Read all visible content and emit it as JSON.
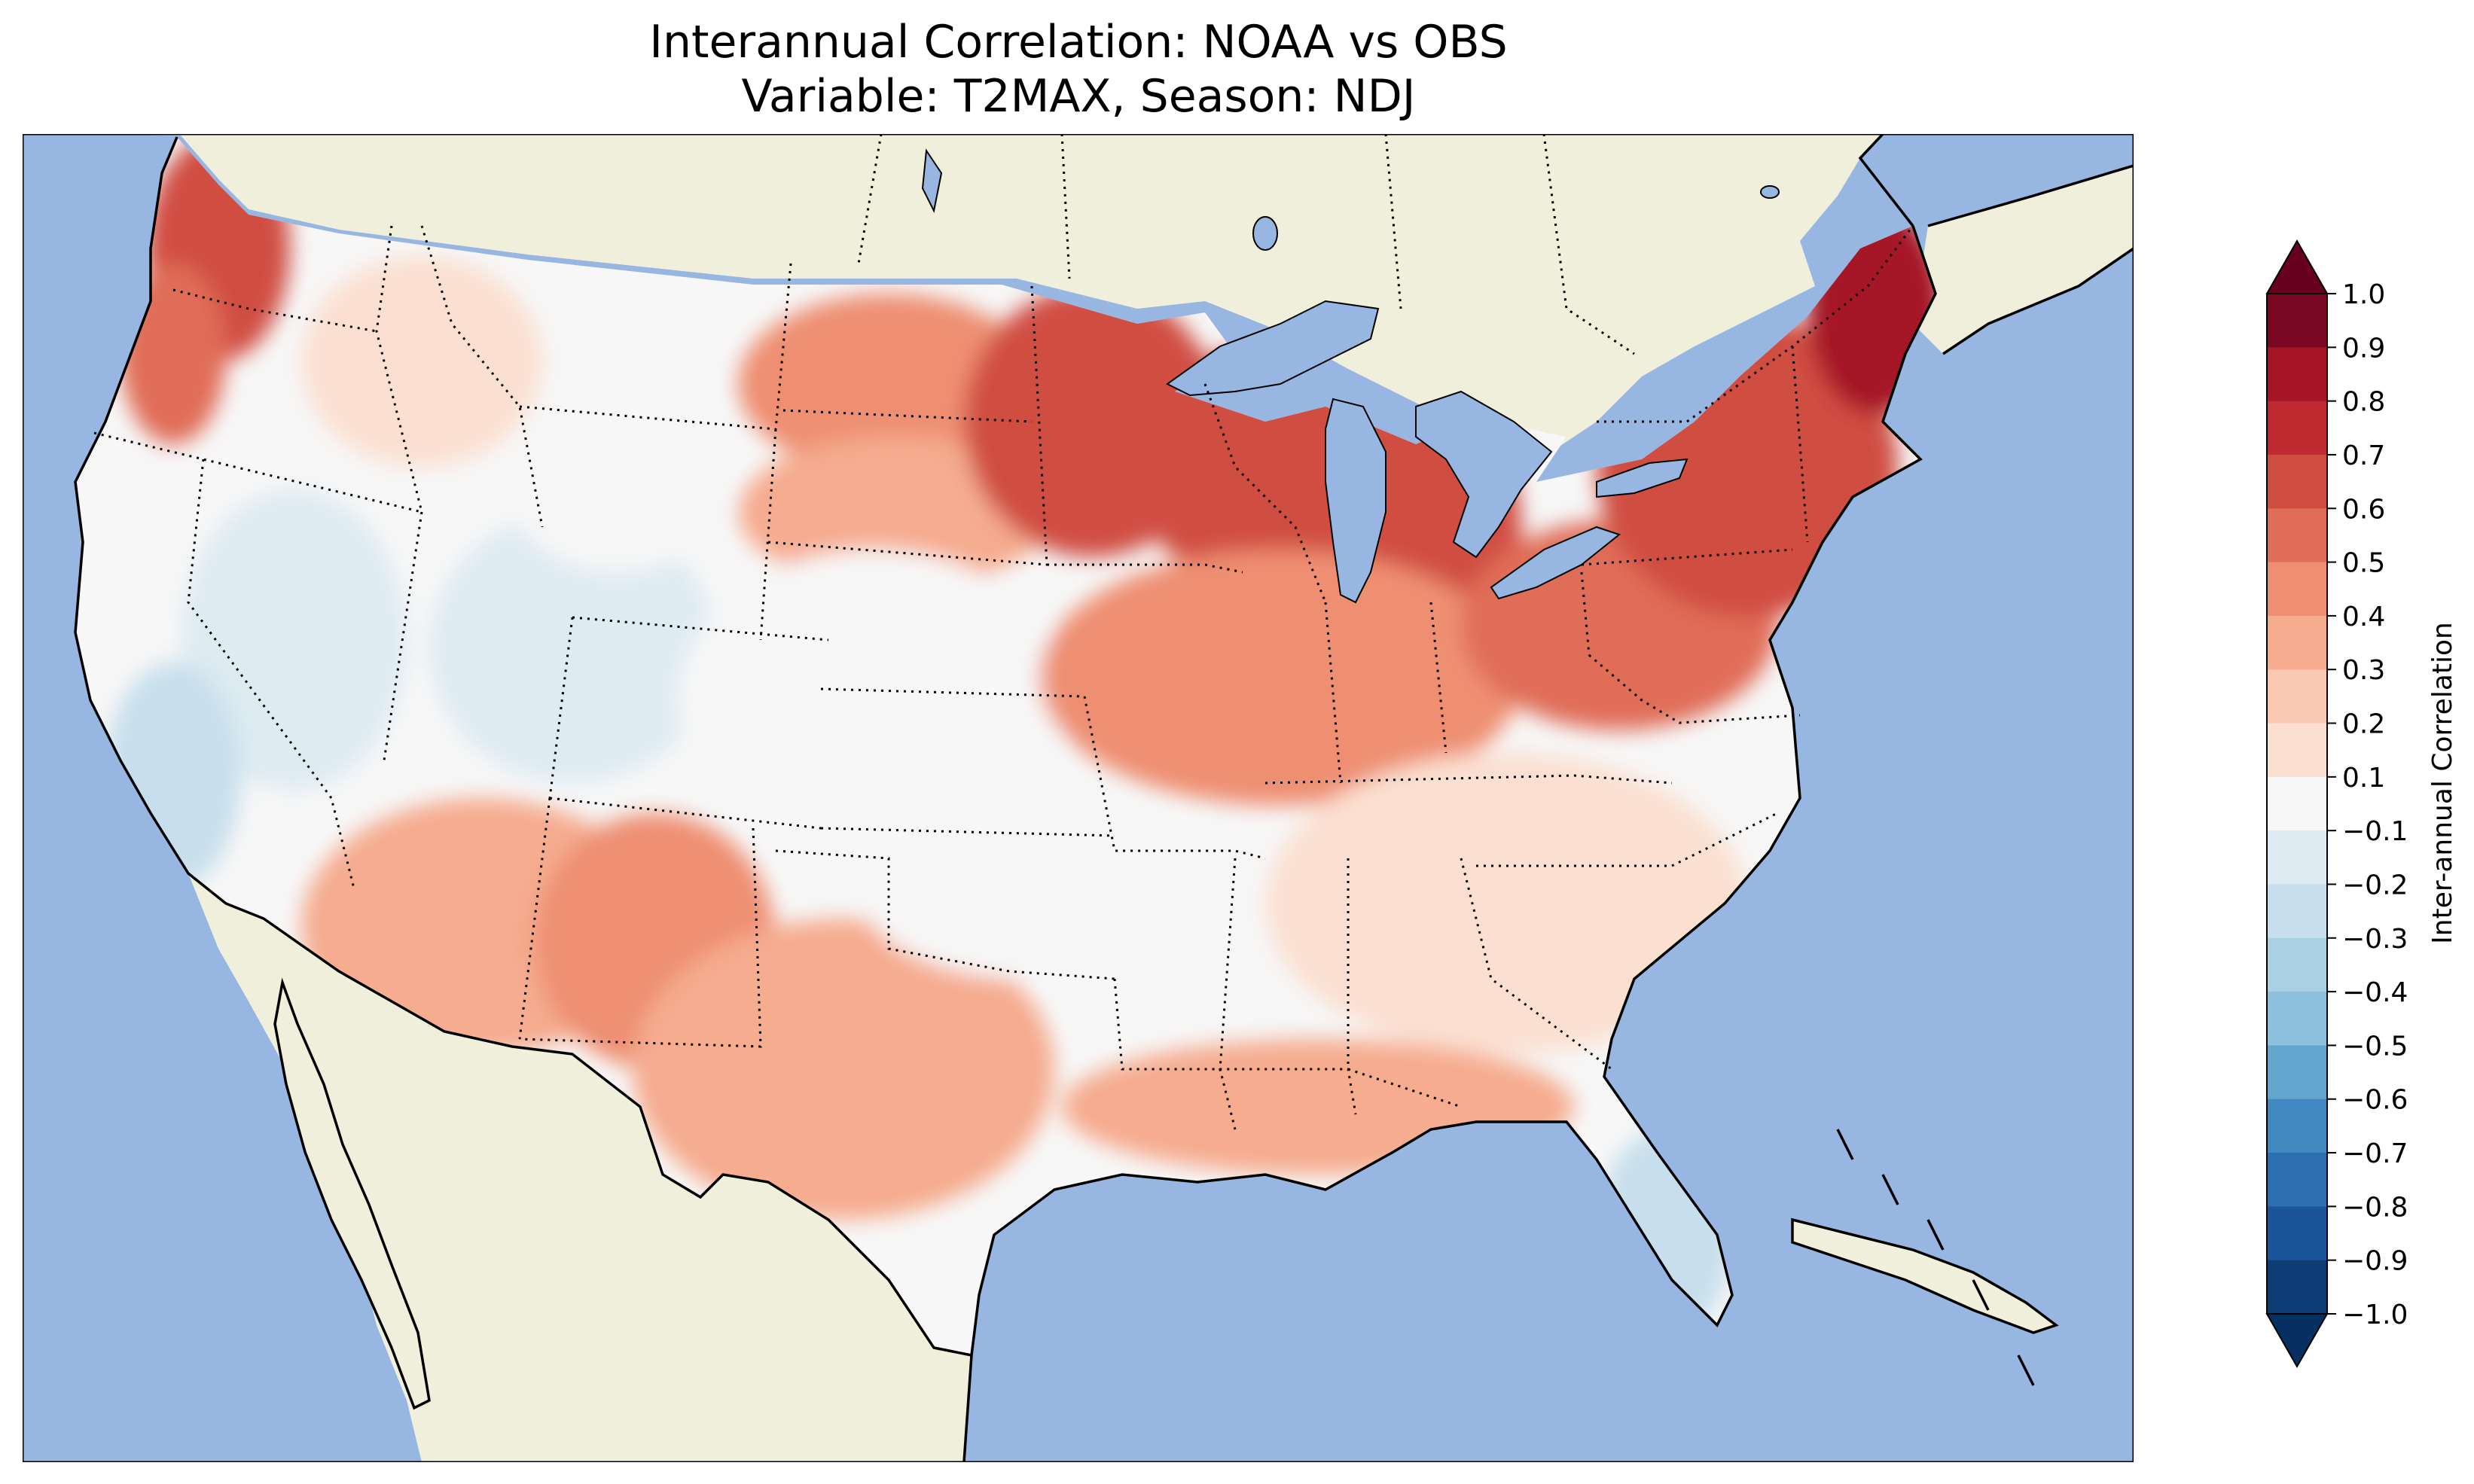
{
  "figure": {
    "title_line1": "Interannual Correlation: NOAA vs OBS",
    "title_line2": "Variable: T2MAX, Season: NDJ"
  },
  "map": {
    "region": "Contiguous United States",
    "ocean_color": "#97b6e1",
    "land_color": "#efefdb",
    "lake_color": "#97b6e1",
    "coastline_color": "#000000",
    "state_border_style": "dotted",
    "field_regions": [
      {
        "name": "Washington coast",
        "value": 0.6
      },
      {
        "name": "Oregon coast",
        "value": 0.5
      },
      {
        "name": "Idaho / Montana west",
        "value": 0.1
      },
      {
        "name": "Nevada",
        "value": -0.2
      },
      {
        "name": "California coast",
        "value": -0.3
      },
      {
        "name": "Utah / Colorado",
        "value": -0.2
      },
      {
        "name": "Wyoming",
        "value": -0.1
      },
      {
        "name": "North Dakota",
        "value": 0.4
      },
      {
        "name": "South Dakota",
        "value": 0.3
      },
      {
        "name": "Nebraska / Kansas",
        "value": 0.0
      },
      {
        "name": "Minnesota",
        "value": 0.6
      },
      {
        "name": "Wisconsin / Michigan UP",
        "value": 0.6
      },
      {
        "name": "Michigan",
        "value": 0.6
      },
      {
        "name": "Iowa / Illinois / Indiana",
        "value": 0.4
      },
      {
        "name": "Ohio / Pennsylvania",
        "value": 0.5
      },
      {
        "name": "New York / New England",
        "value": 0.6
      },
      {
        "name": "Maine",
        "value": 0.8
      },
      {
        "name": "Arizona / New Mexico",
        "value": 0.3
      },
      {
        "name": "West Texas",
        "value": 0.4
      },
      {
        "name": "Texas",
        "value": 0.3
      },
      {
        "name": "Oklahoma",
        "value": 0.0
      },
      {
        "name": "Southeast",
        "value": 0.1
      },
      {
        "name": "Gulf coast",
        "value": 0.3
      },
      {
        "name": "Florida",
        "value": -0.3
      }
    ]
  },
  "colorbar": {
    "label": "Inter-annual Correlation",
    "levels": [
      -1.0,
      -0.9,
      -0.8,
      -0.7,
      -0.6,
      -0.5,
      -0.4,
      -0.3,
      -0.2,
      -0.1,
      0.1,
      0.2,
      0.3,
      0.4,
      0.5,
      0.6,
      0.7,
      0.8,
      0.9,
      1.0
    ],
    "tick_labels": [
      "1.0",
      "0.9",
      "0.8",
      "0.7",
      "0.6",
      "0.5",
      "0.4",
      "0.3",
      "0.2",
      "0.1",
      "−0.1",
      "−0.2",
      "−0.3",
      "−0.4",
      "−0.5",
      "−0.6",
      "−0.7",
      "−0.8",
      "−0.9",
      "−1.0"
    ],
    "colors_top_to_bottom": [
      "#7a0822",
      "#a51526",
      "#bf2a31",
      "#d04d42",
      "#e06d58",
      "#ee8f72",
      "#f5ac8f",
      "#fac7b0",
      "#fbe0d1",
      "#f7f7f7",
      "#deebf2",
      "#c7dfec",
      "#aad0e4",
      "#8cc0dc",
      "#63a6cd",
      "#4188c0",
      "#2b6fb0",
      "#195598",
      "#0e3d76"
    ],
    "extend": "both",
    "over_color": "#67001f",
    "under_color": "#053061"
  }
}
